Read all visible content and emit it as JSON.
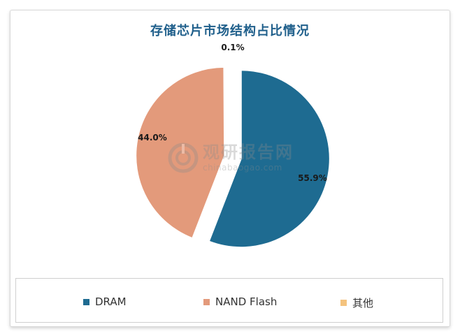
{
  "chart_data": {
    "type": "pie",
    "title": "存储芯片市场结构占比情况",
    "slices": [
      {
        "name": "DRAM",
        "value": 55.9,
        "label": "55.9%",
        "color": "#1e6b91"
      },
      {
        "name": "NAND Flash",
        "value": 44.0,
        "label": "44.0%",
        "color": "#e39a7b"
      },
      {
        "name": "其他",
        "value": 0.1,
        "label": "0.1%",
        "color": "#f4c37e"
      }
    ],
    "legend_position": "bottom",
    "exploded": true
  },
  "watermark": {
    "name": "观研报告网",
    "url": "chinabaogao.com",
    "color": "#8c8c8c"
  }
}
